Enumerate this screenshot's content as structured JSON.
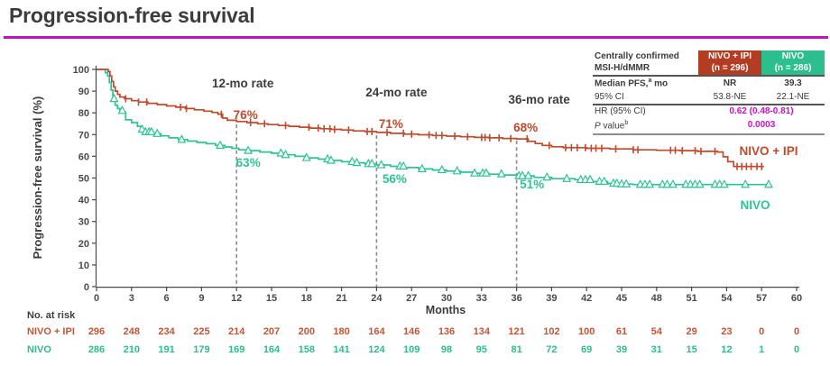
{
  "title": "Progression-free survival",
  "colors": {
    "title_text": "#3c3c3c",
    "underline_magenta": "#c013c0",
    "red_header_bg": "#b23d22",
    "teal_header_bg": "#2cbe8c",
    "red_curve": "#c04a2b",
    "teal_curve": "#2ec492",
    "red_risk_text": "#c35536",
    "teal_risk_text": "#2dbd8c",
    "magenta_value": "#cc0fcc",
    "dashed_gray": "#8c8c8c",
    "axis_gray": "#4a4a4a",
    "dark_text": "#3c3c3c"
  },
  "stats_table": {
    "group_label_l1": "Centrally confirmed",
    "group_label_l2": "MSI-H/dMMR",
    "arm1_l1": "NIVO + IPI",
    "arm1_l2": "(n = 296)",
    "arm2_l1": "NIVO",
    "arm2_l2": "(n = 286)",
    "median_label_pre": "Median PFS,",
    "median_sup": "a",
    "median_label_post": " mo",
    "median_arm1": "NR",
    "median_arm2": "39.3",
    "ci_label": "95% CI",
    "ci_arm1": "53.8-NE",
    "ci_arm2": "22.1-NE",
    "hr_label": "HR (95% CI)",
    "hr_value": "0.62 (0.48-0.81)",
    "p_label_italic": "P",
    "p_label_rest": " value",
    "p_sup": "b",
    "p_value": "0.0003"
  },
  "chart_data": {
    "type": "line",
    "subtype": "kaplan-meier-step",
    "title": "Progression-free survival",
    "xlabel": "Months",
    "ylabel": "Progression-free survival (%)",
    "xlim": [
      0,
      60
    ],
    "ylim": [
      0,
      100
    ],
    "x_ticks": [
      0,
      3,
      6,
      9,
      12,
      15,
      18,
      21,
      24,
      27,
      30,
      33,
      36,
      39,
      42,
      45,
      48,
      51,
      54,
      57,
      60
    ],
    "y_ticks": [
      0,
      10,
      20,
      30,
      40,
      50,
      60,
      70,
      80,
      90,
      100
    ],
    "grid": false,
    "series": [
      {
        "name": "NIVO + IPI",
        "color": "#c04a2b",
        "marker": "censor-tick",
        "steps": [
          [
            0,
            100
          ],
          [
            1.0,
            99
          ],
          [
            1.15,
            97
          ],
          [
            1.3,
            94.5
          ],
          [
            1.45,
            92
          ],
          [
            1.6,
            90
          ],
          [
            1.8,
            88.5
          ],
          [
            2.0,
            87.3
          ],
          [
            2.4,
            86.5
          ],
          [
            3.0,
            85.6
          ],
          [
            3.6,
            85
          ],
          [
            4.4,
            84.4
          ],
          [
            5.2,
            83.8
          ],
          [
            6.0,
            83.2
          ],
          [
            6.8,
            82.6
          ],
          [
            7.6,
            82
          ],
          [
            8.4,
            81.4
          ],
          [
            9.2,
            80.8
          ],
          [
            9.9,
            80.2
          ],
          [
            10.4,
            79.4
          ],
          [
            10.8,
            77.6
          ],
          [
            11.2,
            76.6
          ],
          [
            12.0,
            76
          ],
          [
            12.9,
            75.5
          ],
          [
            13.8,
            75
          ],
          [
            14.7,
            74.6
          ],
          [
            15.6,
            74.2
          ],
          [
            16.5,
            73.8
          ],
          [
            17.4,
            73.4
          ],
          [
            18.3,
            73
          ],
          [
            19.2,
            72.7
          ],
          [
            20.1,
            72.4
          ],
          [
            21.0,
            72.1
          ],
          [
            22.0,
            71.7
          ],
          [
            23.0,
            71.4
          ],
          [
            24.0,
            71
          ],
          [
            25.2,
            70.6
          ],
          [
            26.4,
            70.2
          ],
          [
            27.6,
            69.9
          ],
          [
            28.8,
            69.6
          ],
          [
            30.0,
            69.3
          ],
          [
            31.2,
            69
          ],
          [
            32.4,
            68.7
          ],
          [
            33.6,
            68.5
          ],
          [
            34.8,
            68.2
          ],
          [
            36.0,
            68
          ],
          [
            37.0,
            66.9
          ],
          [
            37.6,
            65.9
          ],
          [
            38.2,
            65
          ],
          [
            39.0,
            64.4
          ],
          [
            40.0,
            64
          ],
          [
            42.0,
            63.7
          ],
          [
            44.0,
            63.4
          ],
          [
            46.0,
            63
          ],
          [
            48.0,
            62.8
          ],
          [
            50.0,
            62.6
          ],
          [
            51.5,
            62.3
          ],
          [
            53.2,
            62
          ],
          [
            53.7,
            59.8
          ],
          [
            54.1,
            57.5
          ],
          [
            54.6,
            55.3
          ],
          [
            57.2,
            55.3
          ]
        ],
        "censor_months": [
          2.5,
          3.6,
          4.3,
          7.2,
          7.7,
          10.7,
          13.2,
          14.4,
          16.2,
          18.2,
          19.0,
          19.5,
          20.0,
          20.4,
          21.6,
          23.2,
          23.6,
          24.9,
          26.3,
          27.0,
          28.5,
          29.1,
          29.6,
          30.7,
          31.8,
          33.0,
          33.3,
          33.7,
          34.5,
          35.5,
          36.9,
          38.8,
          40.2,
          40.7,
          41.2,
          41.9,
          42.4,
          42.8,
          43.3,
          44.5,
          46.0,
          46.4,
          49.2,
          49.6,
          50.2,
          51.3,
          51.8,
          53.0,
          54.9,
          55.3,
          55.7,
          56.1,
          56.6,
          57.0
        ]
      },
      {
        "name": "NIVO",
        "color": "#2ec492",
        "marker": "triangle",
        "steps": [
          [
            0,
            100
          ],
          [
            0.75,
            98.5
          ],
          [
            0.95,
            97
          ],
          [
            1.1,
            94
          ],
          [
            1.25,
            90.5
          ],
          [
            1.4,
            86.5
          ],
          [
            1.6,
            83.5
          ],
          [
            1.8,
            82
          ],
          [
            2.0,
            81
          ],
          [
            2.3,
            80.3
          ],
          [
            2.5,
            76.8
          ],
          [
            3.0,
            75.5
          ],
          [
            3.5,
            73.8
          ],
          [
            3.8,
            72.4
          ],
          [
            4.2,
            71.2
          ],
          [
            4.8,
            70.4
          ],
          [
            5.5,
            69.4
          ],
          [
            6.2,
            68.5
          ],
          [
            7.0,
            67.7
          ],
          [
            7.8,
            67
          ],
          [
            8.6,
            66.4
          ],
          [
            9.4,
            65.8
          ],
          [
            10.2,
            65
          ],
          [
            11.0,
            64.3
          ],
          [
            11.6,
            63.7
          ],
          [
            12.2,
            63
          ],
          [
            13.0,
            62.6
          ],
          [
            14.0,
            62
          ],
          [
            15.0,
            61.4
          ],
          [
            16.0,
            60.7
          ],
          [
            17.0,
            60
          ],
          [
            18.0,
            59.3
          ],
          [
            19.0,
            58.7
          ],
          [
            20.0,
            58.1
          ],
          [
            21.0,
            57.5
          ],
          [
            22.0,
            57
          ],
          [
            23.0,
            56.5
          ],
          [
            24.0,
            56
          ],
          [
            25.2,
            55.4
          ],
          [
            26.4,
            54.8
          ],
          [
            27.6,
            54.2
          ],
          [
            28.8,
            53.7
          ],
          [
            30.0,
            53.2
          ],
          [
            31.2,
            52.7
          ],
          [
            32.4,
            52.2
          ],
          [
            33.6,
            51.8
          ],
          [
            34.8,
            51.4
          ],
          [
            36.0,
            51
          ],
          [
            37.5,
            50.3
          ],
          [
            39.0,
            49.7
          ],
          [
            41.0,
            49.2
          ],
          [
            42.5,
            48.4
          ],
          [
            43.8,
            47.5
          ],
          [
            44.8,
            47.2
          ],
          [
            46.0,
            47
          ],
          [
            57.8,
            47
          ]
        ],
        "censor_months": [
          1.5,
          2.2,
          3.9,
          4.2,
          4.5,
          4.7,
          5.2,
          7.3,
          10.6,
          13.0,
          15.8,
          16.2,
          18.0,
          19.8,
          20.1,
          21.9,
          22.3,
          23.3,
          23.6,
          24.4,
          26.0,
          26.3,
          27.9,
          29.6,
          30.9,
          32.4,
          33.1,
          33.4,
          34.7,
          36.2,
          36.5,
          37.0,
          38.6,
          40.3,
          41.5,
          41.9,
          42.3,
          43.1,
          43.5,
          44.3,
          44.6,
          45.0,
          45.4,
          46.6,
          47.0,
          47.4,
          48.5,
          48.9,
          49.4,
          50.5,
          50.9,
          51.3,
          51.7,
          53.0,
          53.4,
          53.8,
          55.6,
          57.6
        ]
      }
    ],
    "milestones": [
      {
        "month": 12,
        "label": "12-mo rate",
        "rate_nivo_ipi": "76%",
        "rate_nivo": "63%"
      },
      {
        "month": 24,
        "label": "24-mo rate",
        "rate_nivo_ipi": "71%",
        "rate_nivo": "56%"
      },
      {
        "month": 36,
        "label": "36-mo rate",
        "rate_nivo_ipi": "68%",
        "rate_nivo": "51%"
      }
    ],
    "curve_end_labels": [
      "NIVO + IPI",
      "NIVO"
    ],
    "risk_table": {
      "title": "No. at risk",
      "months": [
        0,
        3,
        6,
        9,
        12,
        15,
        18,
        21,
        24,
        27,
        30,
        33,
        36,
        39,
        42,
        45,
        48,
        51,
        54,
        57,
        60
      ],
      "rows": [
        {
          "label": "NIVO + IPI",
          "values": [
            296,
            248,
            234,
            225,
            214,
            207,
            200,
            180,
            164,
            146,
            136,
            134,
            121,
            102,
            100,
            61,
            54,
            29,
            23,
            0,
            0
          ]
        },
        {
          "label": "NIVO",
          "values": [
            286,
            210,
            191,
            179,
            169,
            164,
            158,
            141,
            124,
            109,
            98,
            95,
            81,
            72,
            69,
            39,
            31,
            15,
            12,
            1,
            0
          ]
        }
      ]
    },
    "legend_position": "right-of-curves"
  }
}
